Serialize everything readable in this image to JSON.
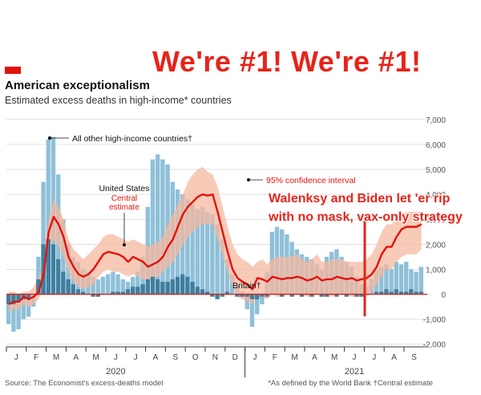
{
  "header": {
    "title": "American exceptionalism",
    "subtitle": "Estimated excess deaths in high-income* countries"
  },
  "overlay": {
    "headline": "We're #1! We're #1!",
    "callout_line1": "Walenksy and Biden let 'er rip",
    "callout_line2": "with no mask, vax-only strategy"
  },
  "footer": {
    "source": "Source: The Economist's excess-deaths model",
    "notes": "*As defined by the World Bank   †Central estimate"
  },
  "colors": {
    "us_line": "#e3120b",
    "us_ci": "#f6b8a0",
    "other_bars": "#8fc0d8",
    "britain_bars": "#3f7fa0",
    "overlay_red": "#e8231a"
  },
  "chart_data": {
    "type": "area",
    "ylim": [
      -2000,
      7000
    ],
    "yticks": [
      -2000,
      -1000,
      0,
      1000,
      2000,
      3000,
      4000,
      5000,
      6000,
      7000
    ],
    "ytick_labels": [
      "-2,000",
      "-1,000",
      "0",
      "1,000",
      "2,000",
      "3,000",
      "4,000",
      "5,000",
      "6,000",
      "7,000"
    ],
    "month_labels": [
      "J",
      "F",
      "M",
      "A",
      "M",
      "J",
      "J",
      "A",
      "S",
      "O",
      "N",
      "D",
      "J",
      "F",
      "M",
      "A",
      "M",
      "J",
      "J",
      "A",
      "S"
    ],
    "year_labels": [
      {
        "label": "2020",
        "month_index": 5.5
      },
      {
        "label": "2021",
        "month_index": 17.5
      }
    ],
    "annotations": {
      "other": "All other high-income countries†",
      "us_title": "United States",
      "us_central1": "Central",
      "us_central2": "estimate",
      "ci": "95% confidence interval",
      "britain": "Britain†"
    },
    "x_months": [
      0.0,
      0.25,
      0.5,
      0.75,
      1.0,
      1.25,
      1.5,
      1.75,
      2.0,
      2.25,
      2.5,
      2.75,
      3.0,
      3.25,
      3.5,
      3.75,
      4.0,
      4.25,
      4.5,
      4.75,
      5.0,
      5.25,
      5.5,
      5.75,
      6.0,
      6.25,
      6.5,
      6.75,
      7.0,
      7.25,
      7.5,
      7.75,
      8.0,
      8.25,
      8.5,
      8.75,
      9.0,
      9.25,
      9.5,
      9.75,
      10.0,
      10.25,
      10.5,
      10.75,
      11.0,
      11.25,
      11.5,
      11.75,
      12.0,
      12.25,
      12.5,
      12.75,
      13.0,
      13.25,
      13.5,
      13.75,
      14.0,
      14.25,
      14.5,
      14.75,
      15.0,
      15.25,
      15.5,
      15.75,
      16.0,
      16.25,
      16.5,
      16.75,
      17.0,
      17.25,
      17.5,
      17.75,
      18.0,
      18.25,
      18.5,
      18.75,
      19.0,
      19.25,
      19.5,
      19.75,
      20.0,
      20.25,
      20.5,
      20.75
    ],
    "series": [
      {
        "name": "United States",
        "kind": "line",
        "values": [
          -400,
          -300,
          -300,
          -100,
          -200,
          -100,
          100,
          800,
          2500,
          3100,
          2800,
          2300,
          1500,
          1100,
          800,
          700,
          800,
          1000,
          1300,
          1600,
          1700,
          1650,
          1600,
          1500,
          1300,
          1500,
          1400,
          1300,
          1100,
          1200,
          1300,
          1500,
          1900,
          2200,
          2700,
          3200,
          3500,
          3700,
          3900,
          4000,
          3950,
          4000,
          3300,
          2500,
          1700,
          1000,
          650,
          500,
          400,
          200,
          650,
          600,
          500,
          700,
          650,
          600,
          650,
          650,
          700,
          650,
          550,
          600,
          700,
          550,
          600,
          600,
          700,
          650,
          600,
          650,
          550,
          600,
          650,
          800,
          1100,
          1600,
          1900,
          1900,
          2300,
          2600,
          2700,
          2700,
          2700,
          2800
        ]
      },
      {
        "name": "95% CI upper",
        "kind": "band_upper",
        "values": [
          100,
          100,
          0,
          100,
          100,
          300,
          700,
          1500,
          3000,
          3800,
          3500,
          3000,
          2200,
          1800,
          1600,
          1400,
          1600,
          1800,
          2000,
          2300,
          2400,
          2400,
          2300,
          2200,
          2100,
          2200,
          2100,
          2000,
          1900,
          2000,
          2100,
          2300,
          2800,
          3200,
          3600,
          4000,
          4500,
          4800,
          5000,
          5100,
          4900,
          4800,
          4300,
          3500,
          2700,
          2000,
          1600,
          1400,
          1300,
          1100,
          1300,
          1400,
          1200,
          1400,
          1500,
          1500,
          1500,
          1500,
          1600,
          1400,
          1300,
          1400,
          1600,
          1300,
          1300,
          1400,
          1400,
          1400,
          1300,
          1300,
          1300,
          1300,
          1400,
          1600,
          2000,
          2500,
          2800,
          2800,
          3000,
          3200,
          3300,
          3300,
          3300,
          3300
        ]
      },
      {
        "name": "95% CI lower",
        "kind": "band_lower",
        "values": [
          -700,
          -600,
          -600,
          -400,
          -500,
          -400,
          -200,
          200,
          1800,
          2200,
          1900,
          1500,
          900,
          500,
          300,
          200,
          300,
          400,
          700,
          900,
          1000,
          900,
          900,
          800,
          700,
          800,
          700,
          600,
          500,
          600,
          700,
          900,
          1100,
          1300,
          1600,
          2000,
          2300,
          2500,
          2700,
          2800,
          2800,
          2800,
          2200,
          1500,
          900,
          300,
          -100,
          -200,
          -300,
          -400,
          -100,
          -100,
          -200,
          0,
          -100,
          -100,
          0,
          0,
          0,
          0,
          -100,
          -100,
          0,
          -100,
          -100,
          -100,
          0,
          0,
          0,
          -100,
          -100,
          -100,
          -100,
          100,
          400,
          700,
          1000,
          1000,
          1300,
          1500,
          1600,
          1600,
          1600,
          1800
        ]
      },
      {
        "name": "All other high-income countries",
        "kind": "bars",
        "values": [
          -1200,
          -1500,
          -1400,
          -1000,
          -900,
          -500,
          1500,
          4500,
          6200,
          6300,
          4800,
          3000,
          2000,
          1500,
          1300,
          1000,
          900,
          700,
          600,
          700,
          800,
          900,
          800,
          600,
          500,
          700,
          900,
          1500,
          3500,
          5400,
          5600,
          5400,
          5200,
          4500,
          4200,
          4000,
          3800,
          3600,
          3400,
          3500,
          3300,
          3200,
          2800,
          2200,
          1400,
          800,
          400,
          100,
          -600,
          -1300,
          -800,
          -400,
          900,
          2500,
          2700,
          2600,
          2400,
          2100,
          1800,
          1600,
          1500,
          1400,
          1200,
          1000,
          1500,
          1700,
          1800,
          1500,
          1300,
          1100,
          700,
          400,
          300,
          600,
          1000,
          1100,
          1200,
          1000,
          1300,
          1200,
          1300,
          1000,
          900,
          1100
        ]
      },
      {
        "name": "Britain",
        "kind": "bars",
        "values": [
          -400,
          -400,
          -300,
          -200,
          -200,
          0,
          600,
          2000,
          2200,
          2000,
          1400,
          900,
          600,
          400,
          200,
          100,
          0,
          -100,
          -100,
          0,
          0,
          100,
          100,
          100,
          200,
          300,
          300,
          400,
          600,
          700,
          600,
          500,
          500,
          600,
          700,
          800,
          700,
          500,
          300,
          200,
          100,
          -100,
          -200,
          -100,
          100,
          0,
          -100,
          -100,
          -100,
          -200,
          -200,
          -100,
          -100,
          0,
          0,
          -100,
          0,
          -100,
          0,
          -100,
          0,
          -100,
          0,
          -100,
          -100,
          0,
          -100,
          0,
          -100,
          0,
          -100,
          -100,
          0,
          0,
          100,
          100,
          200,
          100,
          200,
          100,
          100,
          200,
          100,
          100
        ]
      }
    ]
  }
}
